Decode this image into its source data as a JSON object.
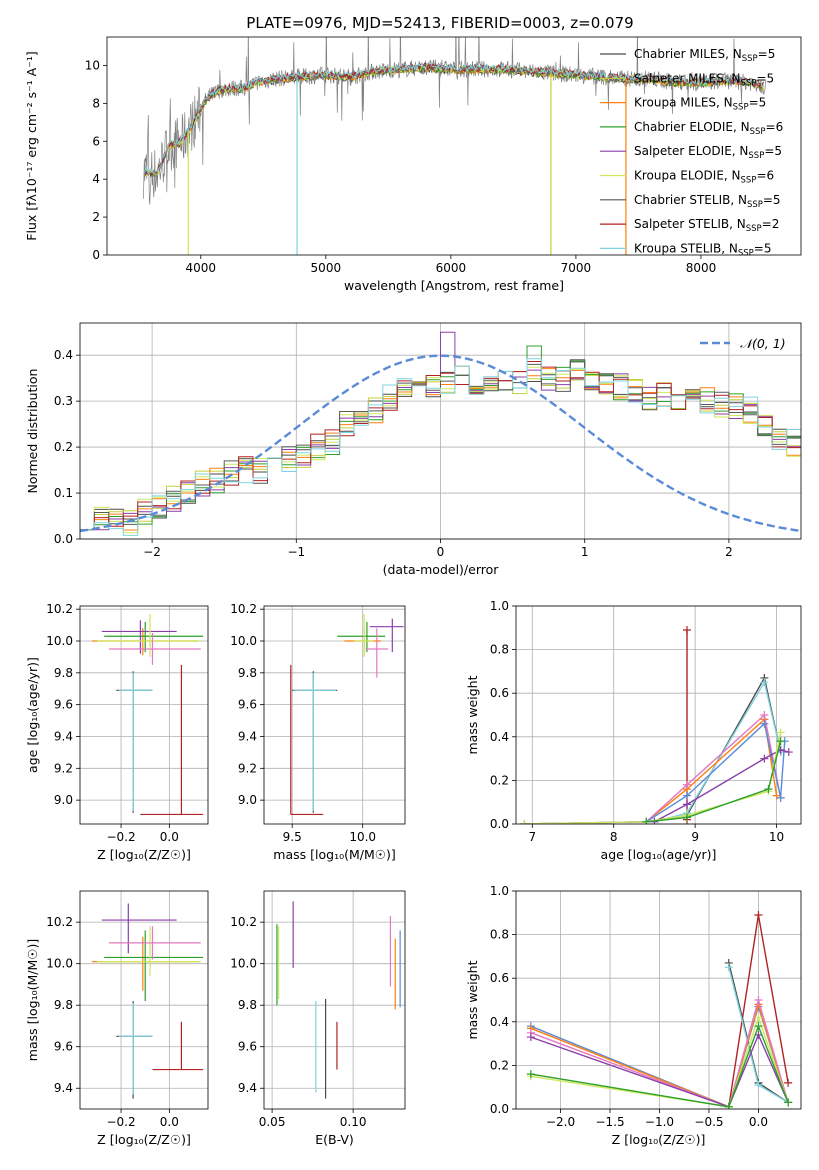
{
  "figure": {
    "title": "PLATE=0976, MJD=52413, FIBERID=0003, z=0.079"
  },
  "colors": {
    "model_lines": [
      "#4a4a4a",
      "#c6cf3a",
      "#ff7f0e",
      "#2ca02c",
      "#8b3fa8",
      "#cde85a",
      "#5a5a5a",
      "#b22222",
      "#7fd3e0"
    ],
    "data": "#808080",
    "gaussian": "#5b8bd6"
  },
  "chart_data": [
    {
      "id": "spectrum",
      "type": "line",
      "xlabel": "wavelength [Angstrom, rest frame]",
      "ylabel": "Flux [f_λ10^-17 erg cm^-2 s^-1 A^-1]",
      "xlim": [
        3250,
        8800
      ],
      "ylim": [
        0,
        11.5
      ],
      "xticks": [
        4000,
        5000,
        6000,
        7000,
        8000
      ],
      "yticks": [
        0,
        2,
        4,
        6,
        8,
        10
      ],
      "grid": false,
      "legend_position": "right",
      "continuum": [
        [
          3550,
          4.4
        ],
        [
          3650,
          4.3
        ],
        [
          3750,
          5.8
        ],
        [
          3850,
          6.0
        ],
        [
          3950,
          7.1
        ],
        [
          4050,
          8.3
        ],
        [
          4150,
          8.7
        ],
        [
          4250,
          8.8
        ],
        [
          4350,
          8.8
        ],
        [
          4450,
          9.1
        ],
        [
          4600,
          9.3
        ],
        [
          4800,
          9.4
        ],
        [
          5000,
          9.5
        ],
        [
          5200,
          9.4
        ],
        [
          5400,
          9.7
        ],
        [
          5600,
          9.8
        ],
        [
          5800,
          9.9
        ],
        [
          6000,
          9.8
        ],
        [
          6200,
          9.8
        ],
        [
          6400,
          9.8
        ],
        [
          6600,
          9.7
        ],
        [
          6800,
          9.6
        ],
        [
          7000,
          9.5
        ],
        [
          7200,
          9.4
        ],
        [
          7400,
          9.3
        ],
        [
          7600,
          9.3
        ],
        [
          7800,
          9.1
        ],
        [
          8000,
          9.1
        ],
        [
          8200,
          9.2
        ],
        [
          8400,
          9.1
        ],
        [
          8500,
          8.9
        ]
      ],
      "drops": [
        [
          3900,
          0
        ],
        [
          4770,
          0
        ],
        [
          6800,
          0
        ],
        [
          7400,
          0
        ]
      ],
      "series": [
        {
          "name": "Chabrier MILES, N_SSP=5",
          "label_main": "Chabrier MILES, N",
          "label_sub": "SSP",
          "label_tail": "=5",
          "color": "#4a4a4a"
        },
        {
          "name": "Salpeter MILES, N_SSP=5",
          "label_main": "Salpeter MILES, N",
          "label_sub": "SSP",
          "label_tail": "=5",
          "color": "#c6cf3a"
        },
        {
          "name": "Kroupa MILES, N_SSP=5",
          "label_main": "Kroupa MILES, N",
          "label_sub": "SSP",
          "label_tail": "=5",
          "color": "#ff7f0e"
        },
        {
          "name": "Chabrier ELODIE, N_SSP=6",
          "label_main": "Chabrier ELODIE, N",
          "label_sub": "SSP",
          "label_tail": "=6",
          "color": "#2ca02c"
        },
        {
          "name": "Salpeter ELODIE, N_SSP=5",
          "label_main": "Salpeter ELODIE, N",
          "label_sub": "SSP",
          "label_tail": "=5",
          "color": "#8b3fa8"
        },
        {
          "name": "Kroupa ELODIE, N_SSP=6",
          "label_main": "Kroupa ELODIE, N",
          "label_sub": "SSP",
          "label_tail": "=6",
          "color": "#cde85a"
        },
        {
          "name": "Chabrier STELIB, N_SSP=5",
          "label_main": "Chabrier STELIB, N",
          "label_sub": "SSP",
          "label_tail": "=5",
          "color": "#5a5a5a"
        },
        {
          "name": "Salpeter STELIB, N_SSP=2",
          "label_main": "Salpeter STELIB, N",
          "label_sub": "SSP",
          "label_tail": "=2",
          "color": "#b22222"
        },
        {
          "name": "Kroupa STELIB, N_SSP=5",
          "label_main": "Kroupa STELIB, N",
          "label_sub": "SSP",
          "label_tail": "=5",
          "color": "#7fd3e0"
        }
      ]
    },
    {
      "id": "residuals",
      "type": "line",
      "xlabel": "(data-model)/error",
      "ylabel": "Normed distribution",
      "xlim": [
        -2.5,
        2.5
      ],
      "ylim": [
        0,
        0.47
      ],
      "xticks": [
        -2,
        -1,
        0,
        1,
        2
      ],
      "yticks": [
        0.0,
        0.1,
        0.2,
        0.3,
        0.4
      ],
      "grid": true,
      "legend_position": "top-right",
      "gaussian_label": "𝒩(0, 1)",
      "bin_width": 0.1,
      "envelope": [
        0.05,
        0.04,
        0.035,
        0.035,
        0.06,
        0.07,
        0.085,
        0.1,
        0.12,
        0.13,
        0.14,
        0.15,
        0.15,
        0.16,
        0.175,
        0.18,
        0.2,
        0.21,
        0.25,
        0.26,
        0.28,
        0.31,
        0.33,
        0.35,
        0.33,
        0.34,
        0.35,
        0.34,
        0.33,
        0.35,
        0.34,
        0.37,
        0.35,
        0.35,
        0.36,
        0.35,
        0.34,
        0.33,
        0.32,
        0.3,
        0.31,
        0.31,
        0.31,
        0.3,
        0.29,
        0.29,
        0.28,
        0.25,
        0.22,
        0.21,
        0.21,
        0.19,
        0.175,
        0.16,
        0.15,
        0.14,
        0.13,
        0.11,
        0.1,
        0.1,
        0.08,
        0.075,
        0.07,
        0.06,
        0.05
      ]
    },
    {
      "id": "age-vs-Z",
      "type": "scatter",
      "xlabel": "Z [log10(Z/Z☉)]",
      "ylabel": "age [log10(age/yr)]",
      "xlim": [
        -0.37,
        0.16
      ],
      "ylim": [
        8.85,
        10.22
      ],
      "xticks": [
        -0.2,
        0.0
      ],
      "yticks": [
        9.0,
        9.2,
        9.4,
        9.6,
        9.8,
        10.0,
        10.2
      ],
      "grid": true,
      "points": [
        {
          "x": -0.15,
          "y": 9.69,
          "ex": [
            -0.22,
            -0.07
          ],
          "ey": [
            8.92,
            9.81
          ],
          "color": "#4a4a4a"
        },
        {
          "x": -0.15,
          "y": 9.69,
          "ex": [
            -0.21,
            -0.07
          ],
          "ey": [
            8.93,
            9.8
          ],
          "color": "#7fd3e0"
        },
        {
          "x": 0.05,
          "y": 8.91,
          "ex": [
            -0.12,
            0.14
          ],
          "ey": [
            8.91,
            9.85
          ],
          "color": "#b22222"
        },
        {
          "x": -0.11,
          "y": 10.0,
          "ex": [
            -0.32,
            0.12
          ],
          "ey": [
            9.91,
            10.08
          ],
          "color": "#ff7f0e"
        },
        {
          "x": -0.1,
          "y": 10.03,
          "ex": [
            -0.27,
            0.14
          ],
          "ey": [
            9.93,
            10.12
          ],
          "color": "#2ca02c"
        },
        {
          "x": -0.12,
          "y": 10.06,
          "ex": [
            -0.28,
            0.03
          ],
          "ey": [
            9.92,
            10.13
          ],
          "color": "#8b3fa8"
        },
        {
          "x": -0.08,
          "y": 10.0,
          "ex": [
            -0.3,
            0.13
          ],
          "ey": [
            9.9,
            10.17
          ],
          "color": "#cde85a"
        },
        {
          "x": -0.07,
          "y": 9.95,
          "ex": [
            -0.25,
            0.13
          ],
          "ey": [
            9.85,
            10.05
          ],
          "color": "#e377c2"
        }
      ]
    },
    {
      "id": "age-vs-mass",
      "type": "scatter",
      "xlabel": "mass [log10(M/M☉)]",
      "ylabel": "",
      "xlim": [
        9.3,
        10.3
      ],
      "ylim": [
        8.85,
        10.22
      ],
      "xticks": [
        9.5,
        10.0
      ],
      "yticks": [
        9.0,
        9.2,
        9.4,
        9.6,
        9.8,
        10.0,
        10.2
      ],
      "grid": true,
      "points": [
        {
          "x": 9.65,
          "y": 9.69,
          "ex": [
            9.5,
            9.82
          ],
          "ey": [
            8.92,
            9.81
          ],
          "color": "#4a4a4a"
        },
        {
          "x": 9.65,
          "y": 9.69,
          "ex": [
            9.51,
            9.81
          ],
          "ey": [
            8.93,
            9.8
          ],
          "color": "#7fd3e0"
        },
        {
          "x": 9.49,
          "y": 8.91,
          "ex": [
            9.49,
            9.72
          ],
          "ey": [
            8.91,
            9.85
          ],
          "color": "#b22222"
        },
        {
          "x": 10.01,
          "y": 10.0,
          "ex": [
            9.87,
            10.13
          ],
          "ey": [
            9.91,
            10.08
          ],
          "color": "#ff7f0e"
        },
        {
          "x": 10.03,
          "y": 10.03,
          "ex": [
            9.82,
            10.16
          ],
          "ey": [
            9.93,
            10.12
          ],
          "color": "#2ca02c"
        },
        {
          "x": 10.21,
          "y": 10.09,
          "ex": [
            10.05,
            10.29
          ],
          "ey": [
            9.93,
            10.14
          ],
          "color": "#8b3fa8"
        },
        {
          "x": 10.01,
          "y": 10.0,
          "ex": [
            9.94,
            10.08
          ],
          "ey": [
            9.9,
            10.17
          ],
          "color": "#cde85a"
        },
        {
          "x": 10.1,
          "y": 9.95,
          "ex": [
            10.02,
            10.18
          ],
          "ey": [
            9.77,
            10.08
          ],
          "color": "#e377c2"
        }
      ]
    },
    {
      "id": "weight-vs-age",
      "type": "line",
      "xlabel": "age [log10(age/yr)]",
      "ylabel": "mass weight",
      "xlim": [
        6.8,
        10.3
      ],
      "ylim": [
        0,
        1.0
      ],
      "xticks": [
        7,
        8,
        9,
        10
      ],
      "yticks": [
        0.0,
        0.2,
        0.4,
        0.6,
        0.8,
        1.0
      ],
      "grid": true,
      "series": [
        {
          "color": "#b22222",
          "x": [
            8.9,
            8.9
          ],
          "y": [
            0.02,
            0.89
          ]
        },
        {
          "color": "#4a4a4a",
          "x": [
            8.4,
            8.9,
            9.85,
            10.05
          ],
          "y": [
            0.01,
            0.04,
            0.67,
            0.33
          ]
        },
        {
          "color": "#7fd3e0",
          "x": [
            8.5,
            8.9,
            9.85,
            10.05
          ],
          "y": [
            0.01,
            0.05,
            0.65,
            0.33
          ]
        },
        {
          "color": "#ff7f0e",
          "x": [
            6.9,
            8.4,
            8.9,
            9.85,
            10.0
          ],
          "y": [
            0.0,
            0.01,
            0.16,
            0.48,
            0.13
          ]
        },
        {
          "color": "#e377c2",
          "x": [
            6.9,
            8.4,
            8.9,
            9.85,
            10.05
          ],
          "y": [
            0.0,
            0.01,
            0.18,
            0.5,
            0.12
          ]
        },
        {
          "color": "#5b8bd6",
          "x": [
            6.9,
            8.4,
            8.9,
            9.85,
            10.05,
            10.1
          ],
          "y": [
            0.0,
            0.01,
            0.13,
            0.46,
            0.12,
            0.38
          ]
        },
        {
          "color": "#8b3fa8",
          "x": [
            8.5,
            8.9,
            9.85,
            10.05,
            10.15
          ],
          "y": [
            0.01,
            0.09,
            0.3,
            0.34,
            0.33
          ]
        },
        {
          "color": "#cde85a",
          "x": [
            6.9,
            8.4,
            8.9,
            9.9,
            10.05
          ],
          "y": [
            0.0,
            0.01,
            0.04,
            0.15,
            0.42
          ]
        },
        {
          "color": "#2ca02c",
          "x": [
            8.4,
            8.9,
            9.9,
            10.05
          ],
          "y": [
            0.01,
            0.03,
            0.16,
            0.38
          ]
        }
      ]
    },
    {
      "id": "mass-vs-Z",
      "type": "scatter",
      "xlabel": "Z [log10(Z/Z☉)]",
      "ylabel": "mass [log10(M/M☉)]",
      "xlim": [
        -0.37,
        0.16
      ],
      "ylim": [
        9.3,
        10.35
      ],
      "xticks": [
        -0.2,
        0.0
      ],
      "yticks": [
        9.4,
        9.6,
        9.8,
        10.0,
        10.2
      ],
      "grid": true,
      "points": [
        {
          "x": -0.15,
          "y": 9.65,
          "ex": [
            -0.22,
            -0.07
          ],
          "ey": [
            9.35,
            9.82
          ],
          "color": "#4a4a4a"
        },
        {
          "x": -0.15,
          "y": 9.65,
          "ex": [
            -0.21,
            -0.07
          ],
          "ey": [
            9.37,
            9.81
          ],
          "color": "#7fd3e0"
        },
        {
          "x": 0.05,
          "y": 9.49,
          "ex": [
            -0.07,
            0.14
          ],
          "ey": [
            9.49,
            9.72
          ],
          "color": "#b22222"
        },
        {
          "x": -0.11,
          "y": 10.01,
          "ex": [
            -0.32,
            0.12
          ],
          "ey": [
            9.87,
            10.13
          ],
          "color": "#ff7f0e"
        },
        {
          "x": -0.1,
          "y": 10.03,
          "ex": [
            -0.27,
            0.14
          ],
          "ey": [
            9.82,
            10.16
          ],
          "color": "#2ca02c"
        },
        {
          "x": -0.17,
          "y": 10.21,
          "ex": [
            -0.28,
            0.03
          ],
          "ey": [
            10.05,
            10.29
          ],
          "color": "#8b3fa8"
        },
        {
          "x": -0.08,
          "y": 10.01,
          "ex": [
            -0.3,
            0.13
          ],
          "ey": [
            9.94,
            10.18
          ],
          "color": "#cde85a"
        },
        {
          "x": -0.07,
          "y": 10.1,
          "ex": [
            -0.25,
            0.13
          ],
          "ey": [
            10.02,
            10.18
          ],
          "color": "#e377c2"
        }
      ]
    },
    {
      "id": "mass-vs-ebv",
      "type": "scatter",
      "xlabel": "E(B-V)",
      "ylabel": "",
      "xlim": [
        0.045,
        0.132
      ],
      "ylim": [
        9.3,
        10.35
      ],
      "xticks": [
        0.05,
        0.1
      ],
      "xtick_labels": [
        "0.05",
        "0.10"
      ],
      "yticks": [
        9.4,
        9.6,
        9.8,
        10.0,
        10.2
      ],
      "grid": true,
      "points": [
        {
          "x": 0.053,
          "ey": [
            9.8,
            10.19
          ],
          "color": "#2ca02c"
        },
        {
          "x": 0.054,
          "ey": [
            9.83,
            10.18
          ],
          "color": "#cde85a"
        },
        {
          "x": 0.063,
          "ey": [
            9.98,
            10.3
          ],
          "color": "#8b3fa8"
        },
        {
          "x": 0.077,
          "ey": [
            9.38,
            9.82
          ],
          "color": "#7fd3e0"
        },
        {
          "x": 0.083,
          "ey": [
            9.35,
            9.83
          ],
          "color": "#4a4a4a"
        },
        {
          "x": 0.09,
          "ey": [
            9.49,
            9.72
          ],
          "color": "#b22222"
        },
        {
          "x": 0.123,
          "ey": [
            9.89,
            10.23
          ],
          "color": "#e377c2"
        },
        {
          "x": 0.126,
          "ey": [
            9.78,
            10.12
          ],
          "color": "#ff7f0e"
        },
        {
          "x": 0.129,
          "ey": [
            9.79,
            10.16
          ],
          "color": "#5b8bd6"
        }
      ]
    },
    {
      "id": "weight-vs-Z",
      "type": "line",
      "xlabel": "Z [log10(Z/Z☉)]",
      "ylabel": "mass weight",
      "xlim": [
        -2.45,
        0.43
      ],
      "ylim": [
        0,
        1.0
      ],
      "xticks": [
        -2.0,
        -1.5,
        -1.0,
        -0.5,
        0.0
      ],
      "yticks": [
        0.0,
        0.2,
        0.4,
        0.6,
        0.8,
        1.0
      ],
      "grid": true,
      "series": [
        {
          "color": "#b22222",
          "x": [
            -0.3,
            0.0,
            0.3
          ],
          "y": [
            0.01,
            0.89,
            0.12
          ]
        },
        {
          "color": "#4a4a4a",
          "x": [
            -0.3,
            0.0,
            0.3
          ],
          "y": [
            0.67,
            0.12,
            0.03
          ]
        },
        {
          "color": "#7fd3e0",
          "x": [
            -0.3,
            0.0,
            0.3
          ],
          "y": [
            0.65,
            0.11,
            0.03
          ]
        },
        {
          "color": "#5b8bd6",
          "x": [
            -2.3,
            -0.3,
            0.0,
            0.3
          ],
          "y": [
            0.38,
            0.01,
            0.47,
            0.03
          ]
        },
        {
          "color": "#ff7f0e",
          "x": [
            -2.3,
            -0.3,
            0.0,
            0.3
          ],
          "y": [
            0.37,
            0.01,
            0.48,
            0.03
          ]
        },
        {
          "color": "#e377c2",
          "x": [
            -2.3,
            -0.3,
            0.0,
            0.3
          ],
          "y": [
            0.35,
            0.01,
            0.5,
            0.03
          ]
        },
        {
          "color": "#8b3fa8",
          "x": [
            -2.3,
            -0.3,
            0.0,
            0.3
          ],
          "y": [
            0.33,
            0.01,
            0.34,
            0.03
          ]
        },
        {
          "color": "#cde85a",
          "x": [
            -2.3,
            -0.3,
            0.0,
            0.3
          ],
          "y": [
            0.15,
            0.01,
            0.42,
            0.03
          ]
        },
        {
          "color": "#2ca02c",
          "x": [
            -2.3,
            -0.3,
            0.0,
            0.3
          ],
          "y": [
            0.16,
            0.01,
            0.38,
            0.03
          ]
        }
      ]
    }
  ]
}
